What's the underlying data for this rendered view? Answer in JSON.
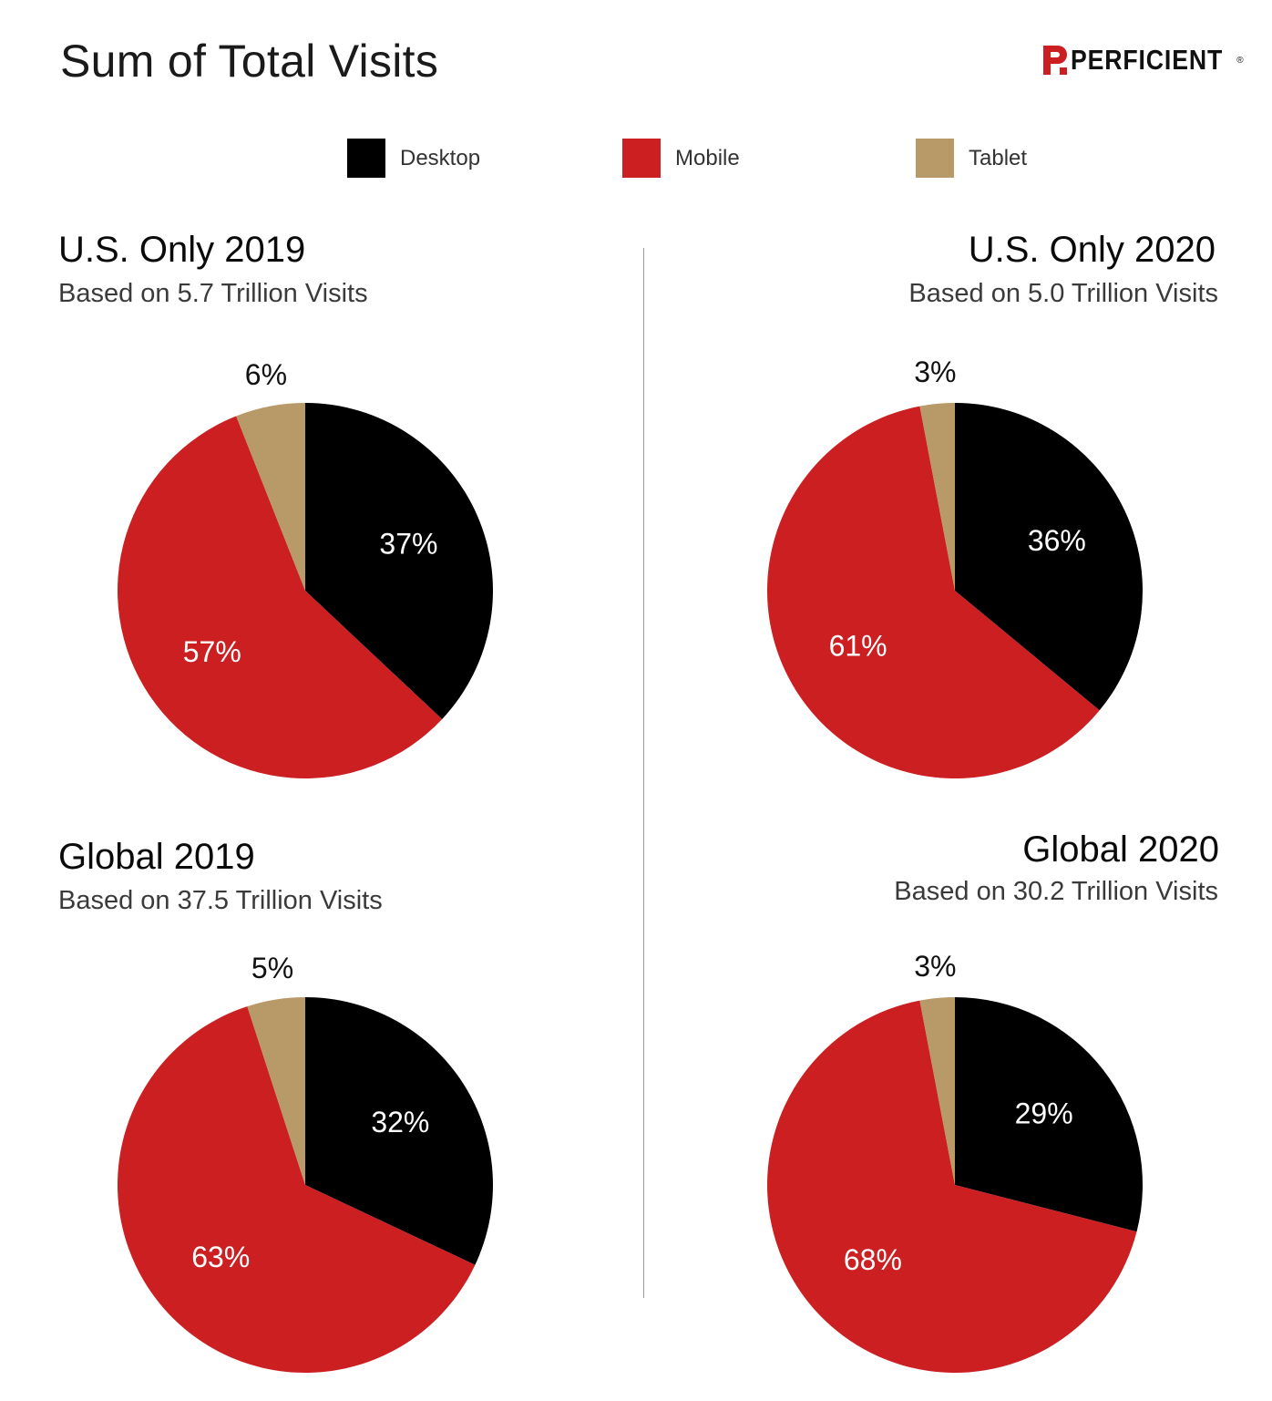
{
  "title": "Sum of Total Visits",
  "logo": {
    "text": "PERFICIENT",
    "trademark": "®"
  },
  "colors": {
    "Desktop": "#000000",
    "Mobile": "#cc1f21",
    "Tablet": "#b89968"
  },
  "legend": [
    {
      "label": "Desktop",
      "color": "#000000"
    },
    {
      "label": "Mobile",
      "color": "#cc1f21"
    },
    {
      "label": "Tablet",
      "color": "#b89968"
    }
  ],
  "chart_data": [
    {
      "type": "pie",
      "title": "U.S. Only 2019",
      "subtitle": "Based on 5.7 Trillion Visits",
      "slices": [
        {
          "label": "Desktop",
          "value": 37,
          "display": "37%"
        },
        {
          "label": "Mobile",
          "value": 57,
          "display": "57%"
        },
        {
          "label": "Tablet",
          "value": 6,
          "display": "6%"
        }
      ]
    },
    {
      "type": "pie",
      "title": "U.S. Only 2020",
      "subtitle": "Based on 5.0 Trillion Visits",
      "slices": [
        {
          "label": "Desktop",
          "value": 36,
          "display": "36%"
        },
        {
          "label": "Mobile",
          "value": 61,
          "display": "61%"
        },
        {
          "label": "Tablet",
          "value": 3,
          "display": "3%"
        }
      ]
    },
    {
      "type": "pie",
      "title": "Global 2019",
      "subtitle": "Based on 37.5 Trillion Visits",
      "slices": [
        {
          "label": "Desktop",
          "value": 32,
          "display": "32%"
        },
        {
          "label": "Mobile",
          "value": 63,
          "display": "63%"
        },
        {
          "label": "Tablet",
          "value": 5,
          "display": "5%"
        }
      ]
    },
    {
      "type": "pie",
      "title": "Global 2020",
      "subtitle": "Based on 30.2 Trillion Visits",
      "slices": [
        {
          "label": "Desktop",
          "value": 29,
          "display": "29%"
        },
        {
          "label": "Mobile",
          "value": 68,
          "display": "68%"
        },
        {
          "label": "Tablet",
          "value": 3,
          "display": "3%"
        }
      ]
    }
  ]
}
